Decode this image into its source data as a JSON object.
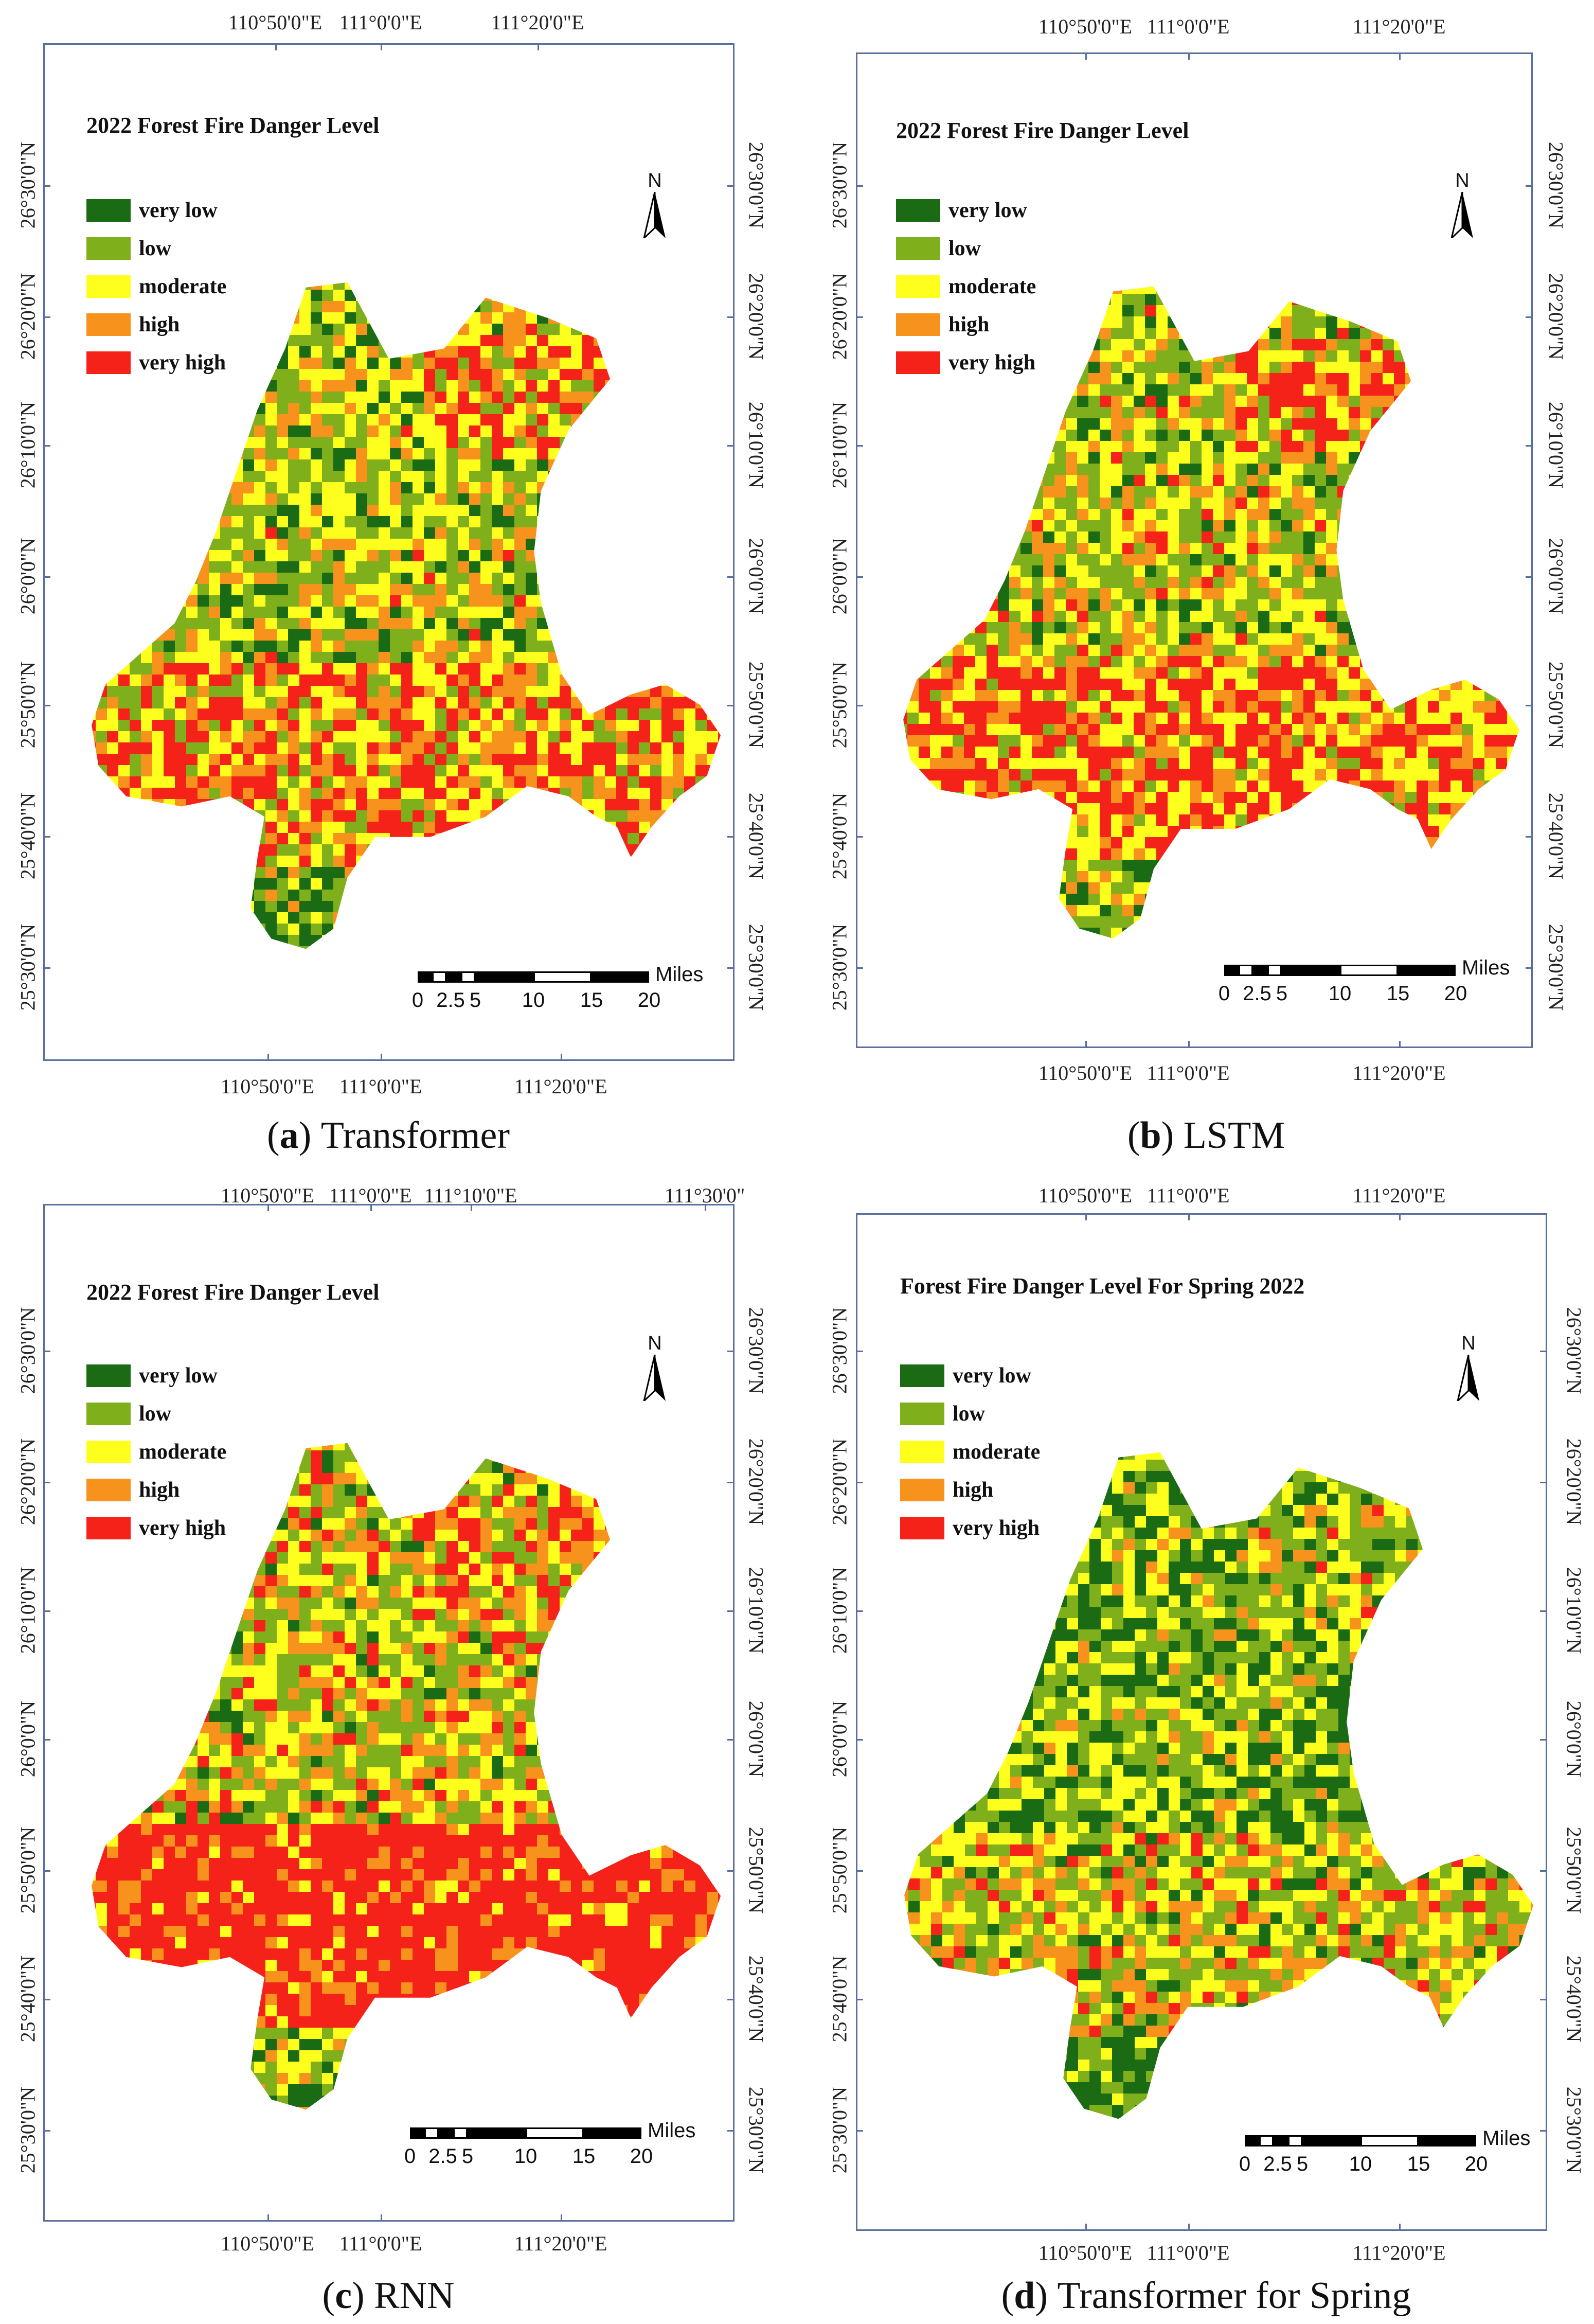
{
  "legend": {
    "classes": [
      {
        "label": "very low",
        "color": "#1a6b14"
      },
      {
        "label": "low",
        "color": "#7fb01c"
      },
      {
        "label": "moderate",
        "color": "#ffff1e"
      },
      {
        "label": "high",
        "color": "#f7921c"
      },
      {
        "label": "very high",
        "color": "#f5221a"
      }
    ]
  },
  "north_label": "N",
  "scale": {
    "unit": "Miles",
    "ticks": [
      "0",
      "2.5",
      "5",
      "10",
      "15",
      "20"
    ]
  },
  "panels": [
    {
      "map_title": "2022 Forest Fire Danger Level",
      "caption_letter": "(a)",
      "caption_text": "Transformer",
      "top_coords": [
        "110°50'0\"E",
        "111°0'0\"E",
        "111°20'0\"E"
      ],
      "bottom_coords": [
        "110°50'0\"E",
        "111°0'0\"E",
        "111°20'0\"E"
      ],
      "left_coords": [
        "26°30'0\"N",
        "26°20'0\"N",
        "26°10'0\"N",
        "26°0'0\"N",
        "25°50'0\"N",
        "25°40'0\"N",
        "25°30'0\"N"
      ],
      "right_coords": [
        "26°30'0\"N",
        "26°20'0\"N",
        "26°10'0\"N",
        "26°0'0\"N",
        "25°50'0\"N",
        "25°40'0\"N",
        "25°30'0\"N"
      ]
    },
    {
      "map_title": "2022 Forest Fire Danger Level",
      "caption_letter": "(b)",
      "caption_text": "LSTM",
      "top_coords": [
        "110°50'0\"E",
        "111°0'0\"E",
        "111°20'0\"E"
      ],
      "bottom_coords": [
        "110°50'0\"E",
        "111°0'0\"E",
        "111°20'0\"E"
      ],
      "left_coords": [
        "26°30'0\"N",
        "26°20'0\"N",
        "26°10'0\"N",
        "26°0'0\"N",
        "25°50'0\"N",
        "25°40'0\"N",
        "25°30'0\"N"
      ],
      "right_coords": [
        "26°30'0\"N",
        "26°20'0\"N",
        "26°10'0\"N",
        "26°0'0\"N",
        "25°50'0\"N",
        "25°40'0\"N",
        "25°30'0\"N"
      ]
    },
    {
      "map_title": "2022 Forest Fire Danger Level",
      "caption_letter": "(c)",
      "caption_text": "RNN",
      "top_coords": [
        "110°50'0\"E",
        "111°0'0\"E",
        "111°10'0\"E",
        "111°30'0\""
      ],
      "bottom_coords": [
        "110°50'0\"E",
        "111°0'0\"E",
        "111°20'0\"E"
      ],
      "left_coords": [
        "26°30'0\"N",
        "26°20'0\"N",
        "26°10'0\"N",
        "26°0'0\"N",
        "25°50'0\"N",
        "25°40'0\"N",
        "25°30'0\"N"
      ],
      "right_coords": [
        "26°30'0\"N",
        "26°20'0\"N",
        "26°10'0\"N",
        "26°0'0\"N",
        "25°50'0\"N",
        "25°40'0\"N",
        "25°30'0\"N"
      ]
    },
    {
      "map_title": "Forest Fire Danger Level For Spring 2022",
      "caption_letter": "(d)",
      "caption_text": "Transformer for Spring",
      "top_coords": [
        "110°50'0\"E",
        "111°0'0\"E",
        "111°20'0\"E"
      ],
      "bottom_coords": [
        "110°50'0\"E",
        "111°0'0\"E",
        "111°20'0\"E"
      ],
      "left_coords": [
        "26°30'0\"N",
        "26°20'0\"N",
        "26°10'0\"N",
        "26°0'0\"N",
        "25°50'0\"N",
        "25°40'0\"N",
        "25°30'0\"N"
      ],
      "right_coords": [
        "26°30'0\"N",
        "26°20'0\"N",
        "26°10'0\"N",
        "26°0'0\"N",
        "25°50'0\"N",
        "25°40'0\"N",
        "25°30'0\"N"
      ]
    }
  ]
}
